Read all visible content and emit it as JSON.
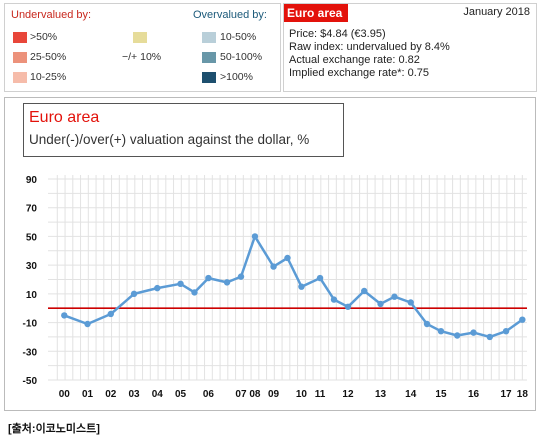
{
  "legend": {
    "undervalued_heading": "Undervalued by:",
    "overvalued_heading": "Overvalued by:",
    "under_items": [
      {
        "label": ">50%",
        "color": "#e8463a"
      },
      {
        "label": "25-50%",
        "color": "#ec927b"
      },
      {
        "label": "10-25%",
        "color": "#f6bcaa"
      }
    ],
    "neutral_item": {
      "label": "−/+ 10%",
      "color": "#e6dc9a"
    },
    "over_items": [
      {
        "label": "10-50%",
        "color": "#b9cfd9"
      },
      {
        "label": "50-100%",
        "color": "#6897a8"
      },
      {
        "label": ">100%",
        "color": "#1d4f6e"
      }
    ]
  },
  "info": {
    "title": "Euro area",
    "date": "January 2018",
    "lines": [
      "Price: $4.84 (€3.95)",
      "Raw index: undervalued by 8.4%",
      "Actual exchange rate: 0.82",
      "Implied exchange rate*: 0.75"
    ]
  },
  "source": "[출처:이코노미스트]",
  "colors": {
    "accent_red": "#e3120b",
    "line": "#5b9bd5",
    "zero_line": "#cc0000"
  },
  "chart_data": {
    "type": "line",
    "title": "Euro area",
    "subtitle": "Under(-)/over(+) valuation against the dollar, %",
    "xlabel": "",
    "ylabel": "",
    "ylim": [
      -50,
      90
    ],
    "yticks": [
      -50,
      -30,
      -10,
      10,
      30,
      50,
      70,
      90
    ],
    "reference_line": 0,
    "grid": true,
    "x_tick_labels": [
      "00",
      "01",
      "02",
      "03",
      "04",
      "05",
      "06",
      "07",
      "08",
      "09",
      "10",
      "11",
      "12",
      "13",
      "14",
      "15",
      "16",
      "17",
      "18"
    ],
    "series": [
      {
        "points": [
          {
            "x": 2000.3,
            "y": -5
          },
          {
            "x": 2001.3,
            "y": -11
          },
          {
            "x": 2002.3,
            "y": -4
          },
          {
            "x": 2003.3,
            "y": 10
          },
          {
            "x": 2004.3,
            "y": 14
          },
          {
            "x": 2005.3,
            "y": 17
          },
          {
            "x": 2005.9,
            "y": 11
          },
          {
            "x": 2006.5,
            "y": 21
          },
          {
            "x": 2007.3,
            "y": 18
          },
          {
            "x": 2007.9,
            "y": 22
          },
          {
            "x": 2008.5,
            "y": 50
          },
          {
            "x": 2009.3,
            "y": 29
          },
          {
            "x": 2009.9,
            "y": 35
          },
          {
            "x": 2010.5,
            "y": 15
          },
          {
            "x": 2011.3,
            "y": 21
          },
          {
            "x": 2011.9,
            "y": 6
          },
          {
            "x": 2012.5,
            "y": 1
          },
          {
            "x": 2013.2,
            "y": 12
          },
          {
            "x": 2013.9,
            "y": 3
          },
          {
            "x": 2014.5,
            "y": 8
          },
          {
            "x": 2015.2,
            "y": 4
          },
          {
            "x": 2015.9,
            "y": -11
          },
          {
            "x": 2016.5,
            "y": -16
          },
          {
            "x": 2017.2,
            "y": -19
          },
          {
            "x": 2017.9,
            "y": -17
          },
          {
            "x": 2018.6,
            "y": -20
          },
          {
            "x": 2019.3,
            "y": -16
          },
          {
            "x": 2020.0,
            "y": -8
          }
        ]
      }
    ]
  }
}
